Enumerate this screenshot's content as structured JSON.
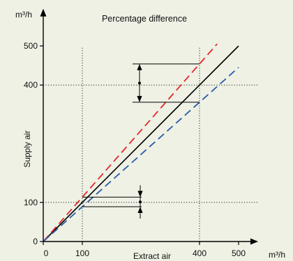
{
  "colors": {
    "background": "#eef1e4",
    "axis": "#000000"
  },
  "chart_data": {
    "type": "line",
    "title": "Percentage difference",
    "xlabel": "Extract air",
    "ylabel": "Supply air",
    "x_unit": "m³/h",
    "y_unit": "m³/h",
    "xlim": [
      0,
      550
    ],
    "ylim": [
      0,
      595
    ],
    "x_ticks": [
      0,
      100,
      400,
      500
    ],
    "y_ticks": [
      0,
      100,
      400,
      500
    ],
    "grid": false,
    "legend": false,
    "reference_lines": {
      "x": [
        100,
        400
      ],
      "y": [
        100,
        400
      ]
    },
    "series": [
      {
        "points": [
          [
            0,
            0
          ],
          [
            500,
            500
          ]
        ],
        "color": "#000000",
        "dashed": false
      },
      {
        "points": [
          [
            0,
            0
          ],
          [
            445,
            505
          ]
        ],
        "color": "#e3262c",
        "dashed": true
      },
      {
        "points": [
          [
            0,
            0
          ],
          [
            500,
            445
          ]
        ],
        "color": "#2a5caa",
        "dashed": true
      }
    ],
    "annotations": [
      {
        "x": 400,
        "y_range": [
          356,
          454
        ]
      },
      {
        "x": 100,
        "y_range": [
          89,
          113.5
        ]
      }
    ]
  }
}
